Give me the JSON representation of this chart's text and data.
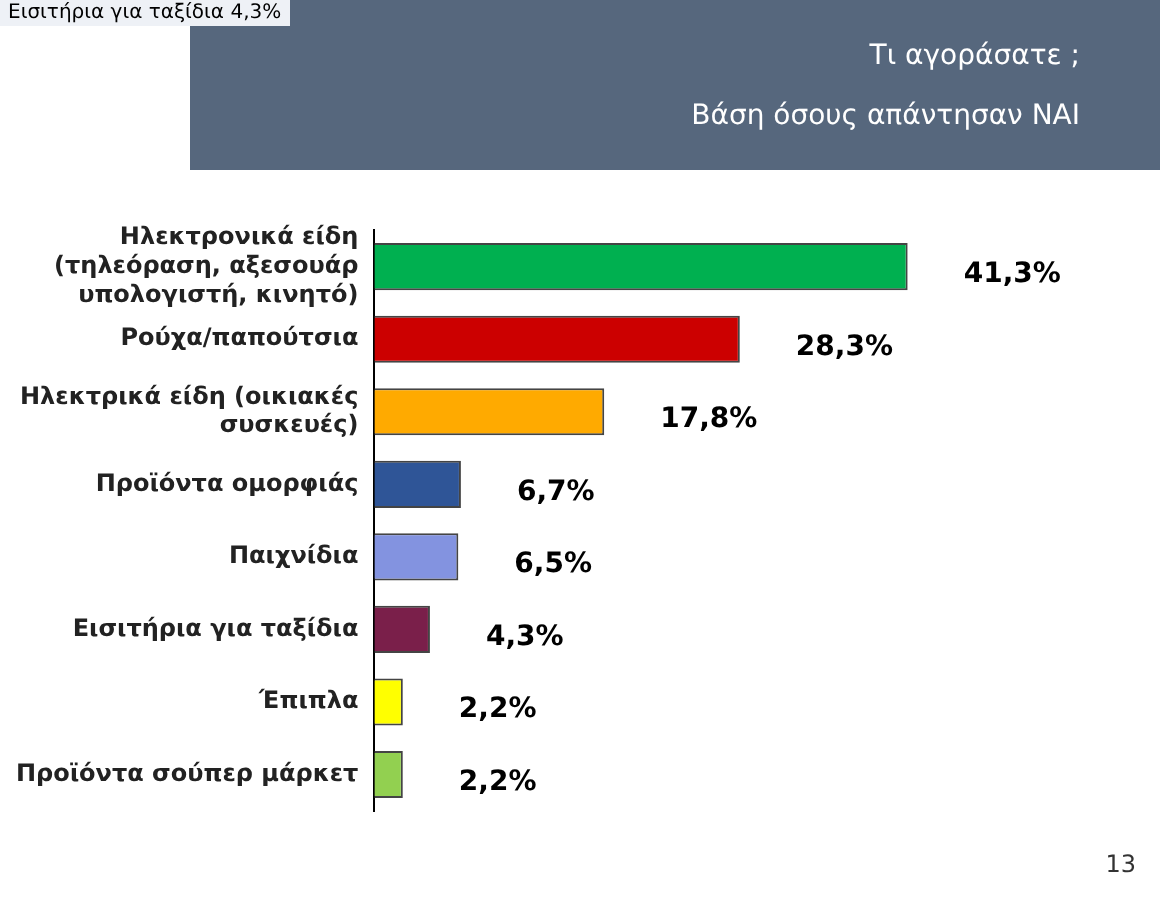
{
  "chart_data": {
    "type": "bar",
    "orientation": "horizontal",
    "title": "Τι αγοράσατε ;",
    "subtitle": "Βάση όσους απάντησαν ΝΑΙ",
    "categories": [
      "Ηλεκτρονικά είδη (τηλεόραση, αξεσουάρ υπολογιστή, κινητό)",
      "Ρούχα/παπούτσια",
      "Ηλεκτρικά είδη (οικιακές συσκευές)",
      "Προϊόντα ομορφιάς",
      "Παιχνίδια",
      "Εισιτήρια για ταξίδια",
      "Έπιπλα",
      "Προϊόντα σούπερ μάρκετ"
    ],
    "values": [
      41.3,
      28.3,
      17.8,
      6.7,
      6.5,
      4.3,
      2.2,
      2.2
    ],
    "value_labels": [
      "41,3%",
      "28,3%",
      "17,8%",
      "6,7%",
      "6,5%",
      "4,3%",
      "2,2%",
      "2,2%"
    ],
    "colors": [
      "#00b050",
      "#cc0000",
      "#ffaa00",
      "#2f5597",
      "#8393e0",
      "#7a1f4a",
      "#ffff00",
      "#92d050"
    ],
    "annotations": [
      "Εισιτήρια για ταξίδια 4,3%",
      "13"
    ]
  }
}
